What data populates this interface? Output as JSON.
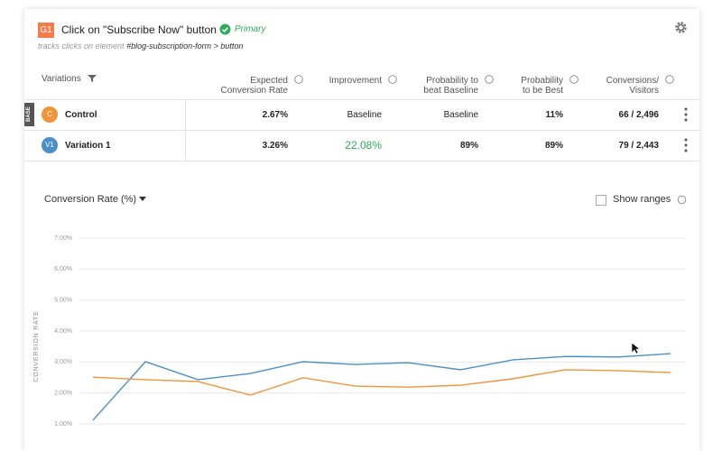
{
  "header": {
    "badge": "G1",
    "title": "Click on \"Subscribe Now\" button",
    "status": "Primary",
    "subtitle_prefix": "tracks clicks on element",
    "subtitle_selector": "#blog-subscription-form > button"
  },
  "table": {
    "columns": [
      [
        "Variations"
      ],
      [
        "Expected",
        "Conversion Rate"
      ],
      [
        "Improvement"
      ],
      [
        "Probability to",
        "beat Baseline"
      ],
      [
        "Probability",
        "to be Best"
      ],
      [
        "Conversions/",
        "Visitors"
      ]
    ],
    "base_tag": "BASE",
    "rows": [
      {
        "badge": "C",
        "name": "Control",
        "expected": "2.67%",
        "improvement": "Baseline",
        "beat": "Baseline",
        "best": "11%",
        "conversions": "66 / 2,496"
      },
      {
        "badge": "V1",
        "name": "Variation 1",
        "expected": "3.26%",
        "improvement": "22.08%",
        "beat": "89%",
        "best": "89%",
        "conversions": "79 / 2,443"
      }
    ]
  },
  "chart_controls": {
    "metric": "Conversion Rate (%)",
    "ranges": "Show ranges"
  },
  "chart_data": {
    "type": "line",
    "ylabel": "CONVERSION RATE",
    "categories": [
      null,
      null,
      null,
      null,
      null,
      null,
      null,
      null,
      null,
      null,
      null,
      null
    ],
    "series": [
      {
        "color": "#4a90c8",
        "values": [
          1.12,
          3.01,
          2.43,
          2.63,
          3.01,
          2.92,
          2.98,
          2.75,
          3.07,
          3.18,
          3.16,
          3.27
        ]
      },
      {
        "color": "#f0953a",
        "values": [
          2.51,
          2.43,
          2.37,
          1.93,
          2.49,
          2.22,
          2.19,
          2.25,
          2.46,
          2.75,
          2.72,
          2.66
        ]
      }
    ],
    "ylim": [
      1,
      7
    ],
    "yticks": [
      {
        "value": 1,
        "label": "1.00%"
      },
      {
        "value": 2,
        "label": "2.00%"
      },
      {
        "value": 3,
        "label": "3.00%"
      },
      {
        "value": 4,
        "label": "4.00%"
      },
      {
        "value": 5,
        "label": "5.00%"
      },
      {
        "value": 6,
        "label": "6.00%"
      },
      {
        "value": 7,
        "label": "7.00%"
      }
    ],
    "grid": true
  }
}
